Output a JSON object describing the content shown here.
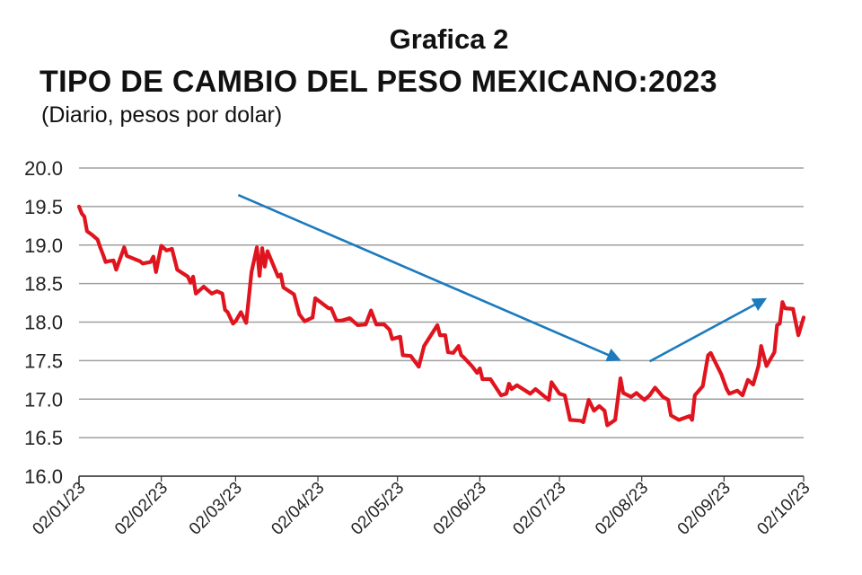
{
  "chart_data": {
    "type": "line",
    "title_number": "Grafica 2",
    "title": "TIPO DE CAMBIO DEL PESO MEXICANO:2023",
    "subtitle": "(Diario, pesos por dolar)",
    "xlabel": "",
    "ylabel": "",
    "ylim": [
      16.0,
      20.0
    ],
    "yticks": [
      "16.0",
      "16.5",
      "17.0",
      "17.5",
      "18.0",
      "18.5",
      "19.0",
      "19.5",
      "20.0"
    ],
    "xlim_days": [
      0,
      273
    ],
    "xticks": [
      {
        "label": "02/01/23",
        "day": 0
      },
      {
        "label": "02/02/23",
        "day": 31
      },
      {
        "label": "02/03/23",
        "day": 59
      },
      {
        "label": "02/04/23",
        "day": 90
      },
      {
        "label": "02/05/23",
        "day": 120
      },
      {
        "label": "02/06/23",
        "day": 151
      },
      {
        "label": "02/07/23",
        "day": 181
      },
      {
        "label": "02/08/23",
        "day": 212
      },
      {
        "label": "02/09/23",
        "day": 243
      },
      {
        "label": "02/10/23",
        "day": 273
      }
    ],
    "grid": true,
    "colors": {
      "series": "#e0141e",
      "arrow": "#1b7bbd",
      "grid": "#a0a0a0"
    },
    "series": [
      {
        "name": "Tipo de cambio",
        "x_days": [
          0,
          1,
          2,
          3,
          5,
          7,
          8,
          9,
          10,
          11,
          13,
          14,
          17,
          18,
          23,
          24,
          27,
          28,
          29,
          31,
          33,
          35,
          37,
          41,
          42,
          43,
          44,
          47,
          50,
          52,
          54,
          55,
          56,
          58,
          59,
          61,
          63,
          65,
          67,
          68,
          69,
          70,
          71,
          75,
          76,
          77,
          81,
          83,
          85,
          88,
          89,
          94,
          95,
          97,
          99,
          102,
          105,
          108,
          110,
          112,
          115,
          117,
          118,
          121,
          122,
          125,
          128,
          130,
          135,
          136,
          138,
          139,
          141,
          143,
          144,
          145,
          148,
          150,
          151,
          152,
          155,
          159,
          161,
          162,
          163,
          165,
          170,
          172,
          177,
          178,
          181,
          183,
          185,
          189,
          190,
          192,
          194,
          196,
          198,
          199,
          202,
          204,
          205,
          208,
          210,
          213,
          215,
          217,
          220,
          222,
          223,
          226,
          230,
          231,
          232,
          235,
          237,
          238,
          242,
          244,
          245,
          248,
          250,
          252,
          254,
          256,
          257,
          259,
          262,
          263,
          264,
          265,
          266,
          269,
          271,
          273
        ],
        "values": [
          19.5,
          19.41,
          19.37,
          19.18,
          19.13,
          19.07,
          18.97,
          18.88,
          18.78,
          18.79,
          18.8,
          18.68,
          18.97,
          18.86,
          18.79,
          18.76,
          18.78,
          18.85,
          18.65,
          18.99,
          18.93,
          18.95,
          18.68,
          18.59,
          18.51,
          18.59,
          18.37,
          18.46,
          18.37,
          18.4,
          18.37,
          18.16,
          18.13,
          17.98,
          18.01,
          18.13,
          17.99,
          18.65,
          18.97,
          18.6,
          18.96,
          18.72,
          18.92,
          18.59,
          18.62,
          18.45,
          18.36,
          18.1,
          18.01,
          18.06,
          18.31,
          18.18,
          18.18,
          18.02,
          18.02,
          18.05,
          17.96,
          17.97,
          18.15,
          17.97,
          17.97,
          17.9,
          17.78,
          17.81,
          17.57,
          17.56,
          17.42,
          17.69,
          17.96,
          17.83,
          17.83,
          17.61,
          17.6,
          17.69,
          17.57,
          17.54,
          17.43,
          17.34,
          17.4,
          17.26,
          17.26,
          17.05,
          17.07,
          17.2,
          17.13,
          17.18,
          17.07,
          17.13,
          16.99,
          17.22,
          17.07,
          17.05,
          16.73,
          16.72,
          16.7,
          16.99,
          16.85,
          16.91,
          16.85,
          16.66,
          16.73,
          17.27,
          17.08,
          17.03,
          17.08,
          16.99,
          17.05,
          17.15,
          17.03,
          16.99,
          16.79,
          16.73,
          16.78,
          16.73,
          17.05,
          17.17,
          17.57,
          17.6,
          17.32,
          17.13,
          17.07,
          17.11,
          17.05,
          17.25,
          17.19,
          17.43,
          17.69,
          17.43,
          17.61,
          17.96,
          17.98,
          18.26,
          18.18,
          18.17,
          17.83,
          18.06
        ]
      }
    ],
    "annotations": [
      {
        "type": "arrow",
        "name": "downtrend-arrow",
        "from": {
          "day": 60,
          "value": 19.65
        },
        "to": {
          "day": 203,
          "value": 17.52
        }
      },
      {
        "type": "arrow",
        "name": "uptrend-arrow",
        "from": {
          "day": 215,
          "value": 17.49
        },
        "to": {
          "day": 258,
          "value": 18.29
        }
      }
    ]
  }
}
